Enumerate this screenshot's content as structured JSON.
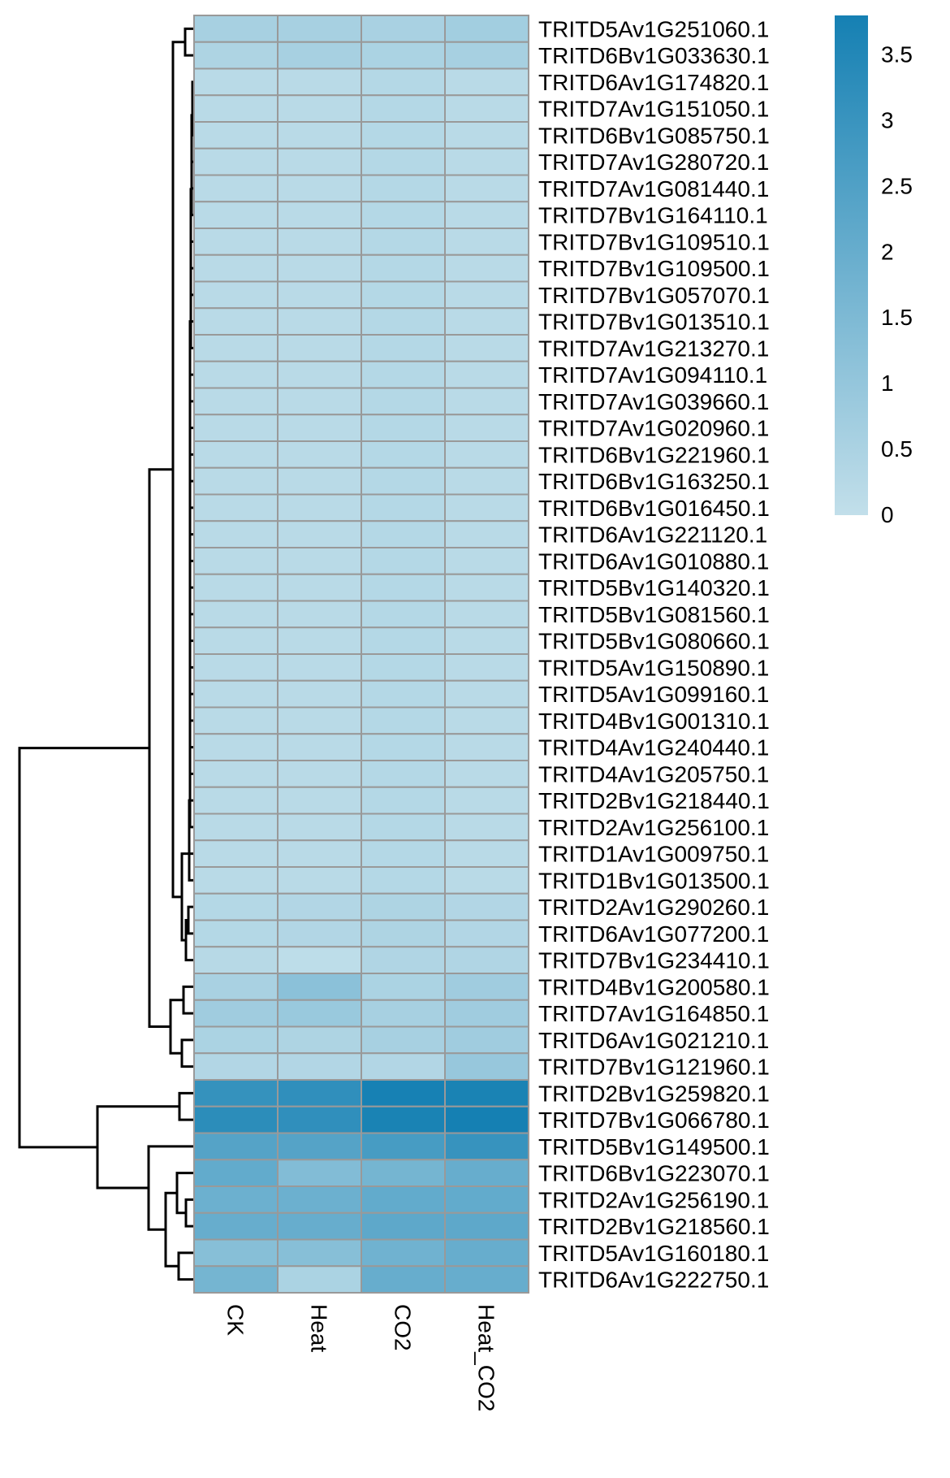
{
  "chart_data": {
    "type": "heatmap",
    "title": "",
    "columns": [
      "CK",
      "Heat",
      "CO2",
      "Heat_CO2"
    ],
    "rows": [
      "TRITD5Av1G251060.1",
      "TRITD6Bv1G033630.1",
      "TRITD6Av1G174820.1",
      "TRITD7Av1G151050.1",
      "TRITD6Bv1G085750.1",
      "TRITD7Av1G280720.1",
      "TRITD7Av1G081440.1",
      "TRITD7Bv1G164110.1",
      "TRITD7Bv1G109510.1",
      "TRITD7Bv1G109500.1",
      "TRITD7Bv1G057070.1",
      "TRITD7Bv1G013510.1",
      "TRITD7Av1G213270.1",
      "TRITD7Av1G094110.1",
      "TRITD7Av1G039660.1",
      "TRITD7Av1G020960.1",
      "TRITD6Bv1G221960.1",
      "TRITD6Bv1G163250.1",
      "TRITD6Bv1G016450.1",
      "TRITD6Av1G221120.1",
      "TRITD6Av1G010880.1",
      "TRITD5Bv1G140320.1",
      "TRITD5Bv1G081560.1",
      "TRITD5Bv1G080660.1",
      "TRITD5Av1G150890.1",
      "TRITD5Av1G099160.1",
      "TRITD4Bv1G001310.1",
      "TRITD4Av1G240440.1",
      "TRITD4Av1G205750.1",
      "TRITD2Bv1G218440.1",
      "TRITD2Av1G256100.1",
      "TRITD1Av1G009750.1",
      "TRITD1Bv1G013500.1",
      "TRITD2Av1G290260.1",
      "TRITD6Av1G077200.1",
      "TRITD7Bv1G234410.1",
      "TRITD4Bv1G200580.1",
      "TRITD7Av1G164850.1",
      "TRITD6Av1G021210.1",
      "TRITD7Bv1G121960.1",
      "TRITD2Bv1G259820.1",
      "TRITD7Bv1G066780.1",
      "TRITD5Bv1G149500.1",
      "TRITD6Bv1G223070.1",
      "TRITD2Av1G256190.1",
      "TRITD2Bv1G218560.1",
      "TRITD5Av1G160180.1",
      "TRITD6Av1G222750.1"
    ],
    "values": [
      [
        0.6,
        0.6,
        0.55,
        0.7
      ],
      [
        0.45,
        0.6,
        0.5,
        0.6
      ],
      [
        0.2,
        0.2,
        0.3,
        0.2
      ],
      [
        0.2,
        0.2,
        0.3,
        0.2
      ],
      [
        0.2,
        0.2,
        0.3,
        0.2
      ],
      [
        0.2,
        0.2,
        0.3,
        0.2
      ],
      [
        0.2,
        0.2,
        0.3,
        0.2
      ],
      [
        0.2,
        0.2,
        0.3,
        0.2
      ],
      [
        0.2,
        0.2,
        0.3,
        0.2
      ],
      [
        0.2,
        0.2,
        0.3,
        0.2
      ],
      [
        0.2,
        0.2,
        0.3,
        0.2
      ],
      [
        0.2,
        0.2,
        0.3,
        0.2
      ],
      [
        0.2,
        0.2,
        0.3,
        0.2
      ],
      [
        0.2,
        0.2,
        0.3,
        0.2
      ],
      [
        0.2,
        0.2,
        0.3,
        0.2
      ],
      [
        0.2,
        0.2,
        0.3,
        0.2
      ],
      [
        0.2,
        0.2,
        0.3,
        0.2
      ],
      [
        0.2,
        0.2,
        0.3,
        0.2
      ],
      [
        0.2,
        0.2,
        0.3,
        0.2
      ],
      [
        0.2,
        0.2,
        0.3,
        0.2
      ],
      [
        0.2,
        0.2,
        0.3,
        0.2
      ],
      [
        0.2,
        0.2,
        0.3,
        0.2
      ],
      [
        0.2,
        0.2,
        0.3,
        0.2
      ],
      [
        0.2,
        0.2,
        0.3,
        0.2
      ],
      [
        0.2,
        0.2,
        0.3,
        0.2
      ],
      [
        0.2,
        0.2,
        0.3,
        0.2
      ],
      [
        0.2,
        0.2,
        0.3,
        0.2
      ],
      [
        0.2,
        0.2,
        0.3,
        0.2
      ],
      [
        0.2,
        0.2,
        0.3,
        0.2
      ],
      [
        0.2,
        0.2,
        0.3,
        0.2
      ],
      [
        0.2,
        0.2,
        0.3,
        0.2
      ],
      [
        0.2,
        0.2,
        0.3,
        0.2
      ],
      [
        0.2,
        0.2,
        0.3,
        0.2
      ],
      [
        0.3,
        0.35,
        0.45,
        0.35
      ],
      [
        0.3,
        0.35,
        0.45,
        0.35
      ],
      [
        0.25,
        0.1,
        0.4,
        0.4
      ],
      [
        0.55,
        1.2,
        0.5,
        0.75
      ],
      [
        0.75,
        0.9,
        0.6,
        0.75
      ],
      [
        0.5,
        0.45,
        0.6,
        0.75
      ],
      [
        0.35,
        0.35,
        0.35,
        0.95
      ],
      [
        3.1,
        3.2,
        3.75,
        3.7
      ],
      [
        3.3,
        3.2,
        3.7,
        3.8
      ],
      [
        2.4,
        2.4,
        2.7,
        3.05
      ],
      [
        2.1,
        1.4,
        1.7,
        2.0
      ],
      [
        1.9,
        1.9,
        2.1,
        2.1
      ],
      [
        2.0,
        2.0,
        2.2,
        2.2
      ],
      [
        1.3,
        1.3,
        1.8,
        2.0
      ],
      [
        1.7,
        0.5,
        2.0,
        2.0
      ]
    ],
    "colorbar": {
      "range": [
        0,
        3.8
      ],
      "ticks": [
        "3.5",
        "3",
        "2.5",
        "2",
        "1.5",
        "1",
        "0.5",
        "0"
      ],
      "low_color": "#c2dfea",
      "high_color": "#1580b3"
    },
    "cell_border_color": "#999999",
    "row_clustering": "dendrogram-left"
  }
}
